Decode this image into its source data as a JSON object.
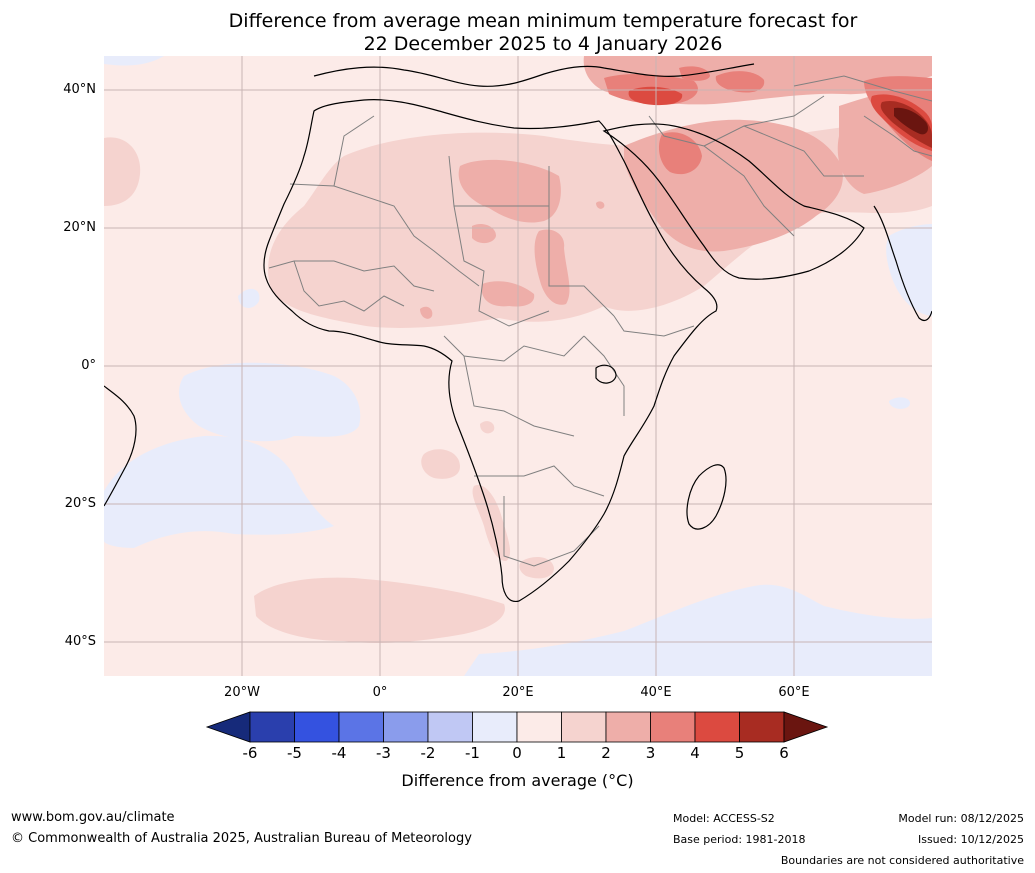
{
  "title": {
    "line1": "Difference from average mean minimum temperature forecast for",
    "line2": "22 December 2025 to 4 January 2026"
  },
  "map": {
    "lat_labels": [
      "40°N",
      "20°N",
      "0°",
      "20°S",
      "40°S"
    ],
    "lon_labels": [
      "20°W",
      "0°",
      "20°E",
      "40°E",
      "60°E"
    ],
    "ocean_colour": "#fcebe8",
    "colours": {
      "anomaly_minus_1_to_0": "#e8ecfb",
      "anomaly_1_to_2": "#f5d3cf",
      "anomaly_2_to_3": "#eeaea9",
      "anomaly_3_to_4": "#e8807a",
      "anomaly_4_to_5": "#dc4a40",
      "anomaly_5_to_6": "#a82c22",
      "anomaly_above_6": "#6a1510",
      "coastline": "#000000",
      "border": "#808080",
      "grid": "#c8b4b4"
    }
  },
  "colorbar": {
    "ticks": [
      "-6",
      "-5",
      "-4",
      "-3",
      "-2",
      "-1",
      "0",
      "1",
      "2",
      "3",
      "4",
      "5",
      "6"
    ],
    "colours": [
      "#162a7a",
      "#2a3fad",
      "#3452e0",
      "#5b74e6",
      "#8a9cec",
      "#c0c8f4",
      "#e8ecfb",
      "#fcebe8",
      "#f5d3cf",
      "#eeaea9",
      "#e8807a",
      "#dc4a40",
      "#a82c22",
      "#6a1510"
    ],
    "label": "Difference from average (°C)"
  },
  "footer": {
    "website": "www.bom.gov.au/climate",
    "copyright": "© Commonwealth of Australia 2025, Australian Bureau of Meteorology",
    "model": "Model: ACCESS-S2",
    "base_period": "Base period: 1981-2018",
    "model_run": "Model run: 08/12/2025",
    "issued": "Issued: 10/12/2025",
    "disclaimer": "Boundaries are not considered authoritative"
  }
}
